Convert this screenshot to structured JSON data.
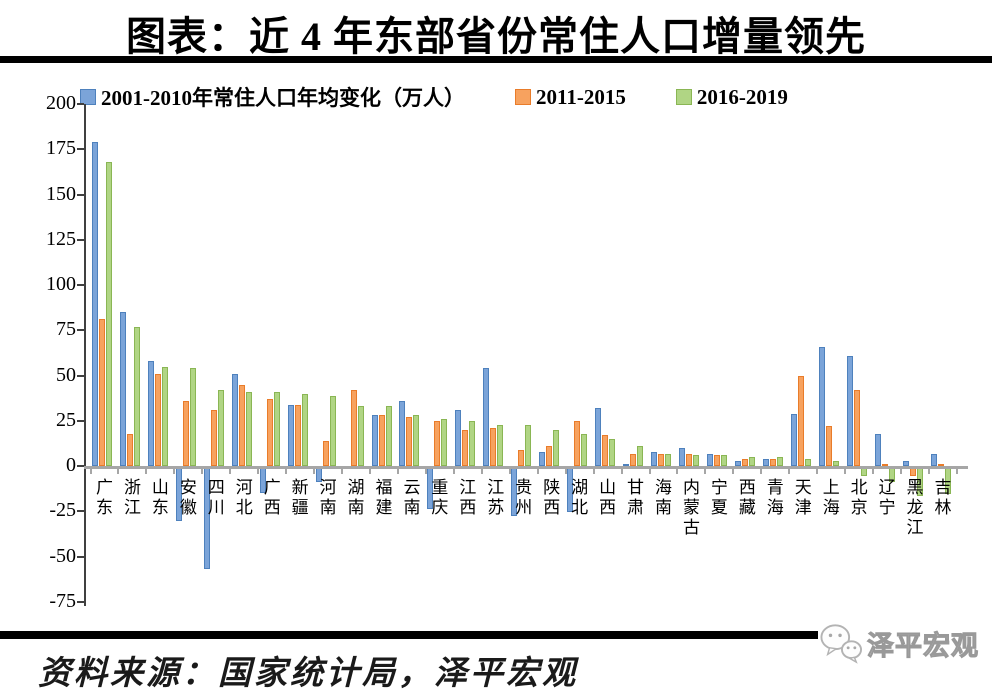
{
  "title": "图表：近 4 年东部省份常住人口增量领先",
  "source": {
    "text": "资料来源：国家统计局，泽平宏观"
  },
  "logo": {
    "text": "泽平宏观",
    "icon": "wechat-icon"
  },
  "chart_data": {
    "type": "bar",
    "title": "图表：近 4 年东部省份常住人口增量领先",
    "categories": [
      "广东",
      "浙江",
      "山东",
      "安徽",
      "四川",
      "河北",
      "广西",
      "新疆",
      "河南",
      "湖南",
      "福建",
      "云南",
      "重庆",
      "江西",
      "江苏",
      "贵州",
      "陕西",
      "湖北",
      "山西",
      "甘肃",
      "海南",
      "内蒙古",
      "宁夏",
      "西藏",
      "青海",
      "天津",
      "上海",
      "北京",
      "辽宁",
      "黑龙江",
      "吉林"
    ],
    "series": [
      {
        "name": "2001-2010年常住人口年均变化（万人）",
        "fill": "#7ba4d9",
        "border": "#4e81bd",
        "values": [
          179,
          85,
          58,
          -30,
          -56,
          51,
          -14,
          34,
          -8,
          0,
          28,
          36,
          -23,
          31,
          54,
          -27,
          8,
          -25,
          32,
          1,
          8,
          10,
          7,
          3,
          4,
          29,
          66,
          61,
          18,
          3,
          7
        ]
      },
      {
        "name": "2011-2015",
        "fill": "#f7a25f",
        "border": "#e97c2a",
        "values": [
          81,
          18,
          51,
          36,
          31,
          45,
          37,
          34,
          14,
          42,
          28,
          27,
          25,
          20,
          21,
          9,
          11,
          25,
          17,
          7,
          7,
          7,
          6,
          4,
          4,
          50,
          22,
          42,
          1,
          -5,
          1
        ]
      },
      {
        "name": "2016-2019",
        "fill": "#b0d584",
        "border": "#8ab654",
        "values": [
          168,
          77,
          55,
          54,
          42,
          41,
          41,
          40,
          39,
          33,
          33,
          28,
          26,
          25,
          23,
          23,
          20,
          18,
          15,
          11,
          7,
          6,
          6,
          5,
          5,
          4,
          3,
          -5,
          -8,
          -16,
          -15
        ]
      }
    ],
    "ylim": [
      -75,
      200
    ],
    "yticks": [
      200,
      175,
      150,
      125,
      100,
      75,
      50,
      25,
      0,
      -25,
      -50,
      -75
    ],
    "xlabel": "",
    "ylabel": "",
    "grid": false,
    "legend_position": "top",
    "axis_color": "#a6a6a6"
  }
}
